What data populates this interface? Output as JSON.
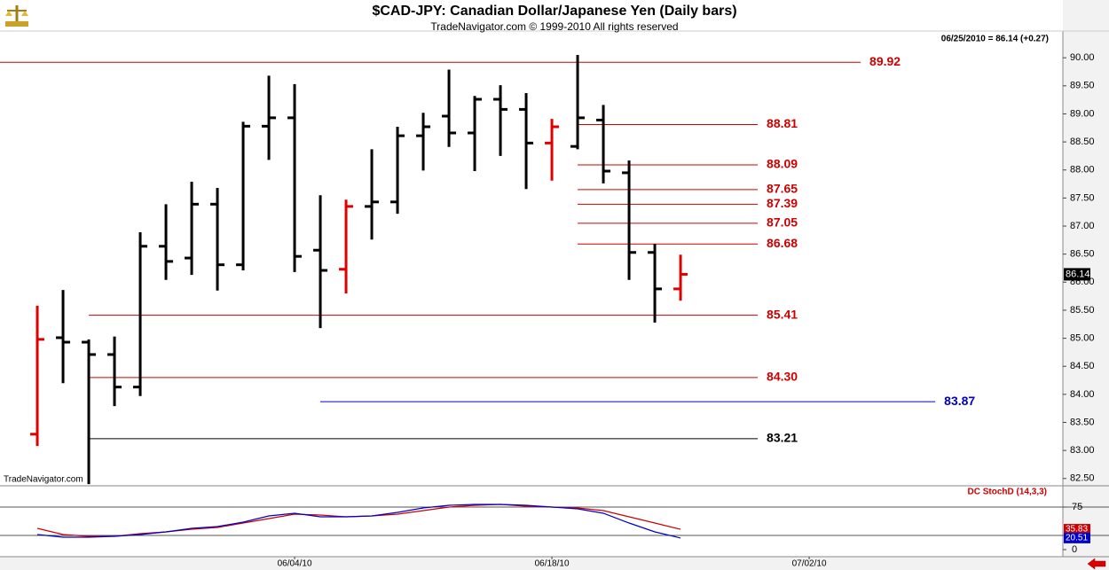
{
  "chart_data": [
    {
      "type": "ohlc",
      "title": "$CAD-JPY:  Canadian Dollar/Japanese Yen  (Daily bars)",
      "subtitle": "TradeNavigator.com © 1999-2010 All rights reserved",
      "annotation": "06/25/2010 = 86.14 (+0.27)",
      "watermark": "TradeNavigator.com",
      "xlim": [
        -1.45,
        39.86
      ],
      "ylim": [
        82.37,
        91.03
      ],
      "yticks": [
        {
          "value": 82.5,
          "label": "82.50"
        },
        {
          "value": 83,
          "label": "83.00"
        },
        {
          "value": 83.5,
          "label": "83.50"
        },
        {
          "value": 84,
          "label": "84.00"
        },
        {
          "value": 84.5,
          "label": "84.50"
        },
        {
          "value": 85,
          "label": "85.00"
        },
        {
          "value": 85.5,
          "label": "85.50"
        },
        {
          "value": 86,
          "label": "86.00"
        },
        {
          "value": 86.5,
          "label": "86.50"
        },
        {
          "value": 87,
          "label": "87.00"
        },
        {
          "value": 87.5,
          "label": "87.50"
        },
        {
          "value": 88,
          "label": "88.00"
        },
        {
          "value": 88.5,
          "label": "88.50"
        },
        {
          "value": 89,
          "label": "89.00"
        },
        {
          "value": 89.5,
          "label": "89.50"
        },
        {
          "value": 90,
          "label": "90.00"
        }
      ],
      "open": [
        83.29,
        85.01,
        84.93,
        84.71,
        84.13,
        86.64,
        86.43,
        87.39,
        86.31,
        88.78,
        88.93,
        86.57,
        86.23,
        87.35,
        87.43,
        88.61,
        88.96,
        88.66,
        89.26,
        89.08,
        88.48,
        88.42,
        88.89,
        87.95,
        86.53,
        85.88
      ],
      "high": [
        85.58,
        85.86,
        84.98,
        85.03,
        86.89,
        87.39,
        87.79,
        87.68,
        88.86,
        89.68,
        89.53,
        87.55,
        87.47,
        88.37,
        88.77,
        89.02,
        89.79,
        89.32,
        89.51,
        89.37,
        88.91,
        90.05,
        89.16,
        88.17,
        86.68,
        86.49
      ],
      "low": [
        83.08,
        84.2,
        82.4,
        83.79,
        83.97,
        86.04,
        86.13,
        85.85,
        86.21,
        88.18,
        86.18,
        85.18,
        85.8,
        86.76,
        87.22,
        87.99,
        88.41,
        87.98,
        88.25,
        87.66,
        87.81,
        88.37,
        87.76,
        86.04,
        85.28,
        85.67
      ],
      "close": [
        84.98,
        84.93,
        84.71,
        84.13,
        86.64,
        86.37,
        87.39,
        86.31,
        88.78,
        88.93,
        86.46,
        86.21,
        87.35,
        87.43,
        88.61,
        88.77,
        88.66,
        89.26,
        89.08,
        88.48,
        88.77,
        88.93,
        87.98,
        86.53,
        85.88,
        86.14
      ],
      "bar_colors": [
        "#e00000",
        "#000000",
        "#000000",
        "#000000",
        "#000000",
        "#000000",
        "#000000",
        "#000000",
        "#000000",
        "#000000",
        "#000000",
        "#000000",
        "#e00000",
        "#000000",
        "#000000",
        "#000000",
        "#000000",
        "#000000",
        "#000000",
        "#000000",
        "#e00000",
        "#000000",
        "#000000",
        "#000000",
        "#000000",
        "#e00000"
      ],
      "levels": [
        {
          "value": 89.92,
          "color": "#cc0000",
          "to": 32
        },
        {
          "value": 88.81,
          "color": "#cc0000",
          "from": 21,
          "to": 28
        },
        {
          "value": 88.09,
          "color": "#cc0000",
          "from": 21,
          "to": 28
        },
        {
          "value": 87.65,
          "color": "#cc0000",
          "from": 21,
          "to": 28
        },
        {
          "value": 87.39,
          "color": "#cc0000",
          "from": 21,
          "to": 28
        },
        {
          "value": 87.05,
          "color": "#cc0000",
          "from": 21,
          "to": 28
        },
        {
          "value": 86.68,
          "color": "#cc0000",
          "from": 21,
          "to": 28
        },
        {
          "value": 85.41,
          "color": "#cc0000",
          "from": 2,
          "to": 28
        },
        {
          "value": 84.3,
          "label": "84.30",
          "color": "#cc0000",
          "from": 2,
          "to": 28
        },
        {
          "value": 83.87,
          "color": "#0000cc",
          "from": 11,
          "to": 34.9
        },
        {
          "value": 83.21,
          "color": "#000000",
          "from": 2,
          "to": 28
        }
      ]
    },
    {
      "type": "line",
      "title": "DC StochD (14,3,3)",
      "xlim": [
        -1.45,
        39.86
      ],
      "ylim": [
        -12.5,
        112.5
      ],
      "yticks": [
        0,
        75
      ],
      "levels": [
        25,
        75
      ],
      "xticks": [
        {
          "value": 10,
          "label": "06/04/10"
        },
        {
          "value": 20,
          "label": "06/18/10"
        },
        {
          "value": 30,
          "label": "07/02/10"
        }
      ],
      "series": [
        {
          "color": "#cc0000",
          "values": [
            37.5,
            26.6,
            23.4,
            23.4,
            28.1,
            31.3,
            35.9,
            39.1,
            46.9,
            54.7,
            62.5,
            60.9,
            57.8,
            59.4,
            62.5,
            68.8,
            75.0,
            78.1,
            79.7,
            76.6,
            75.0,
            73.4,
            68.8,
            57.8,
            46.9,
            35.83
          ]
        },
        {
          "color": "#0000cc",
          "values": [
            26.6,
            21.9,
            21.9,
            23.4,
            26.6,
            31.3,
            37.5,
            40.6,
            48.4,
            59.4,
            64.1,
            57.8,
            57.8,
            59.4,
            65.6,
            73.4,
            78.1,
            79.7,
            79.7,
            78.1,
            75.0,
            71.9,
            64.1,
            46.9,
            31.3,
            20.51
          ]
        }
      ]
    }
  ]
}
